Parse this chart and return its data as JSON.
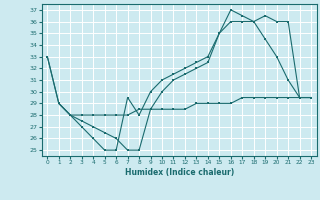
{
  "title": "",
  "xlabel": "Humidex (Indice chaleur)",
  "ylabel": "",
  "bg_color": "#cdeaf0",
  "grid_color": "#ffffff",
  "line_color": "#1a6b6e",
  "xlim": [
    -0.5,
    23.5
  ],
  "ylim": [
    24.5,
    37.5
  ],
  "yticks": [
    25,
    26,
    27,
    28,
    29,
    30,
    31,
    32,
    33,
    34,
    35,
    36,
    37
  ],
  "xticks": [
    0,
    1,
    2,
    3,
    4,
    5,
    6,
    7,
    8,
    9,
    10,
    11,
    12,
    13,
    14,
    15,
    16,
    17,
    18,
    19,
    20,
    21,
    22,
    23
  ],
  "line1_x": [
    0,
    1,
    2,
    3,
    4,
    5,
    6,
    7,
    8,
    9,
    10,
    11,
    12,
    13,
    14,
    15,
    16,
    17,
    18,
    19,
    20,
    21,
    22,
    23
  ],
  "line1_y": [
    33,
    29,
    28,
    27,
    26,
    25,
    25,
    29.5,
    28,
    30,
    31,
    31.5,
    32,
    32.5,
    33,
    35,
    36,
    36,
    36,
    34.5,
    33,
    31,
    29.5,
    29.5
  ],
  "line2_x": [
    0,
    1,
    2,
    3,
    4,
    5,
    6,
    7,
    8,
    9,
    10,
    11,
    12,
    13,
    14,
    15,
    16,
    17,
    18,
    19,
    20,
    21,
    22,
    23
  ],
  "line2_y": [
    33,
    29,
    28,
    27.5,
    27,
    26.5,
    26,
    25,
    25,
    28.5,
    30,
    31,
    31.5,
    32,
    32.5,
    35,
    37,
    36.5,
    36,
    36.5,
    36,
    36,
    29.5,
    29.5
  ],
  "line3_x": [
    1,
    2,
    3,
    4,
    5,
    6,
    7,
    8,
    9,
    10,
    11,
    12,
    13,
    14,
    15,
    16,
    17,
    18,
    19,
    20,
    21,
    22,
    23
  ],
  "line3_y": [
    29,
    28,
    28,
    28,
    28,
    28,
    28,
    28.5,
    28.5,
    28.5,
    28.5,
    28.5,
    29,
    29,
    29,
    29,
    29.5,
    29.5,
    29.5,
    29.5,
    29.5,
    29.5,
    29.5
  ]
}
